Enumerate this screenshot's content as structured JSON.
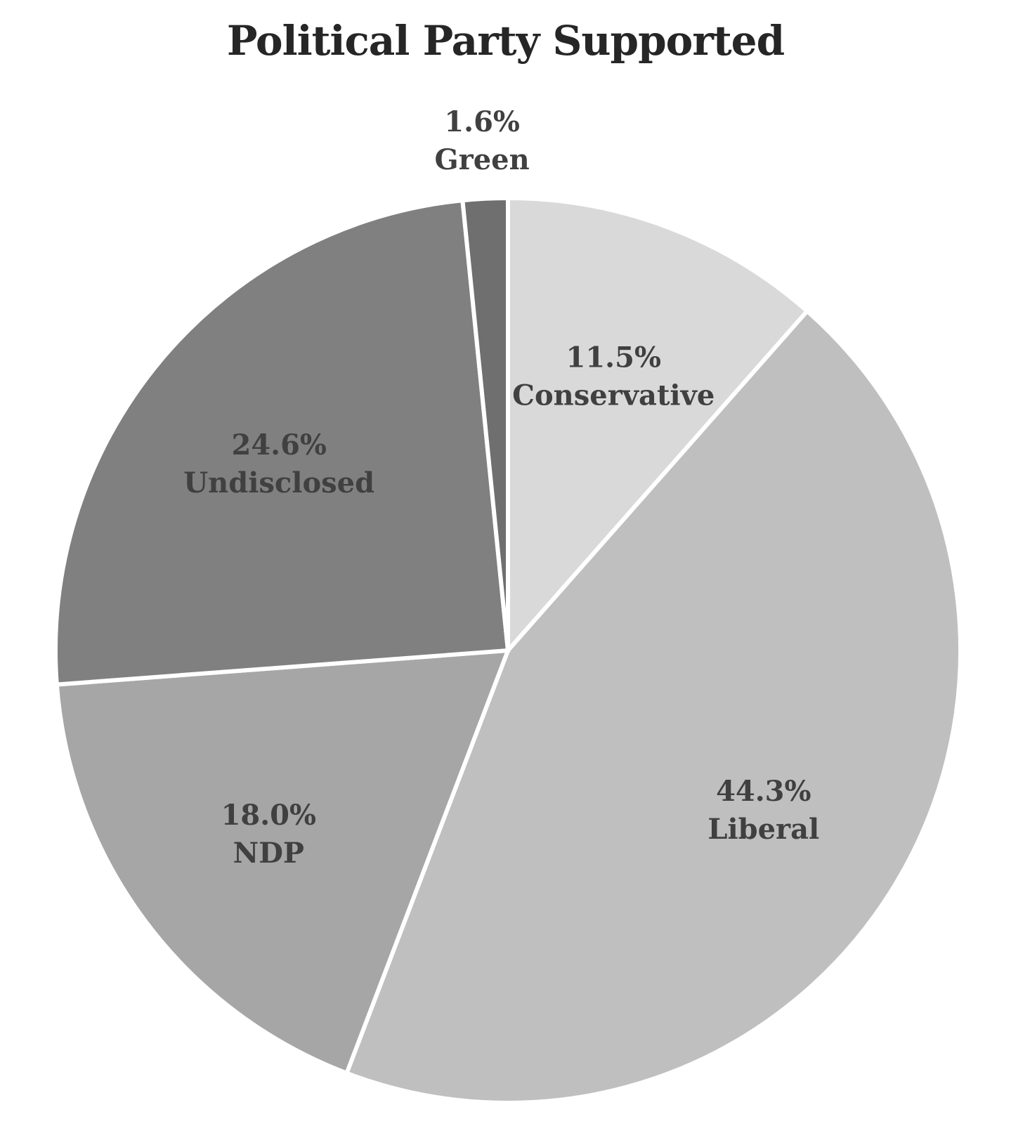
{
  "chart_data": {
    "type": "pie",
    "title": "Political Party Supported",
    "slices": [
      {
        "name": "Conservative",
        "value": 11.5,
        "percent_label": "11.5%",
        "color": "#d9d9d9"
      },
      {
        "name": "Liberal",
        "value": 44.3,
        "percent_label": "44.3%",
        "color": "#bfbfbf"
      },
      {
        "name": "NDP",
        "value": 18.0,
        "percent_label": "18.0%",
        "color": "#a6a6a6"
      },
      {
        "name": "Undisclosed",
        "value": 24.6,
        "percent_label": "24.6%",
        "color": "#808080"
      },
      {
        "name": "Green",
        "value": 1.6,
        "percent_label": "1.6%",
        "color": "#6f6f6f"
      }
    ],
    "start_angle_deg": 0,
    "direction": "clockwise",
    "legend": "none",
    "label_text_color": "#404040"
  }
}
